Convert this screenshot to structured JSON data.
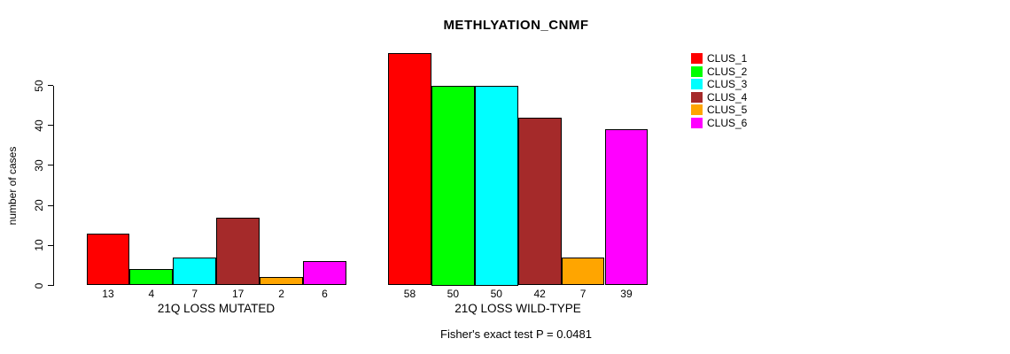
{
  "chart_data": {
    "type": "bar",
    "title": "METHLYATION_CNMF",
    "ylabel": "number of cases",
    "xlabel": "",
    "yticks": [
      0,
      10,
      20,
      30,
      40,
      50
    ],
    "ylim": [
      0,
      58
    ],
    "grid": false,
    "legend_position": "right",
    "series_names": [
      "CLUS_1",
      "CLUS_2",
      "CLUS_3",
      "CLUS_4",
      "CLUS_5",
      "CLUS_6"
    ],
    "colors": [
      "#FF0000",
      "#00FF00",
      "#00FFFF",
      "#A52A2A",
      "#FFA500",
      "#FF00FF"
    ],
    "groups": [
      {
        "label": "21Q LOSS MUTATED",
        "values": [
          13,
          4,
          7,
          17,
          2,
          6
        ]
      },
      {
        "label": "21Q LOSS WILD-TYPE",
        "values": [
          58,
          50,
          50,
          42,
          7,
          39
        ]
      }
    ],
    "annotation": "Fisher's exact test P = 0.0481"
  }
}
